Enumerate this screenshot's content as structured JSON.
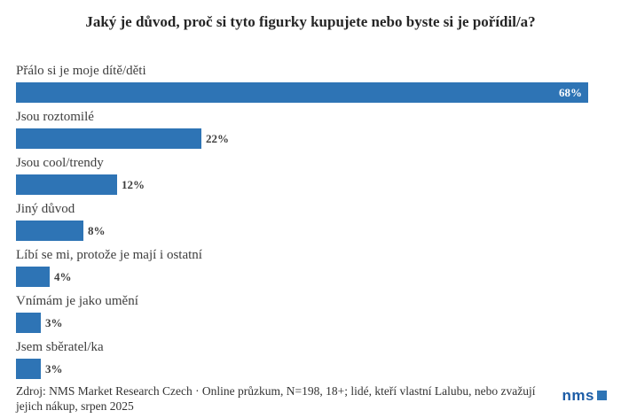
{
  "chart_data": {
    "type": "bar",
    "orientation": "horizontal",
    "title": "Jaký je důvod, proč si tyto figurky kupujete nebo byste si je pořídil/a?",
    "categories": [
      "Přálo si je moje dítě/děti",
      "Jsou roztomilé",
      "Jsou cool/trendy",
      "Jiný důvod",
      "Líbí se mi, protože je mají i ostatní",
      "Vnímám je jako umění",
      "Jsem sběratel/ka"
    ],
    "values": [
      68,
      22,
      12,
      8,
      4,
      3,
      3
    ],
    "unit": "%",
    "xlim": [
      0,
      68
    ],
    "grid": false,
    "legend": false,
    "bar_color": "#2e74b5",
    "value_label_placement": "at bar end; inside (white) for the 68% bar, outside (dark) for the rest",
    "value_label_color_inside": "#ffffff",
    "value_label_color_outside": "#3d3d3d"
  },
  "footer": {
    "source": "Zdroj: NMS Market Research Czech · Online průzkum, N=198, 18+; lidé, kteří vlastní Lalubu, nebo zvažují jejich nákup, srpen 2025",
    "logo_text": "nms",
    "logo_text_color": "#1c5ca6",
    "logo_square_color": "#2e74b5"
  }
}
